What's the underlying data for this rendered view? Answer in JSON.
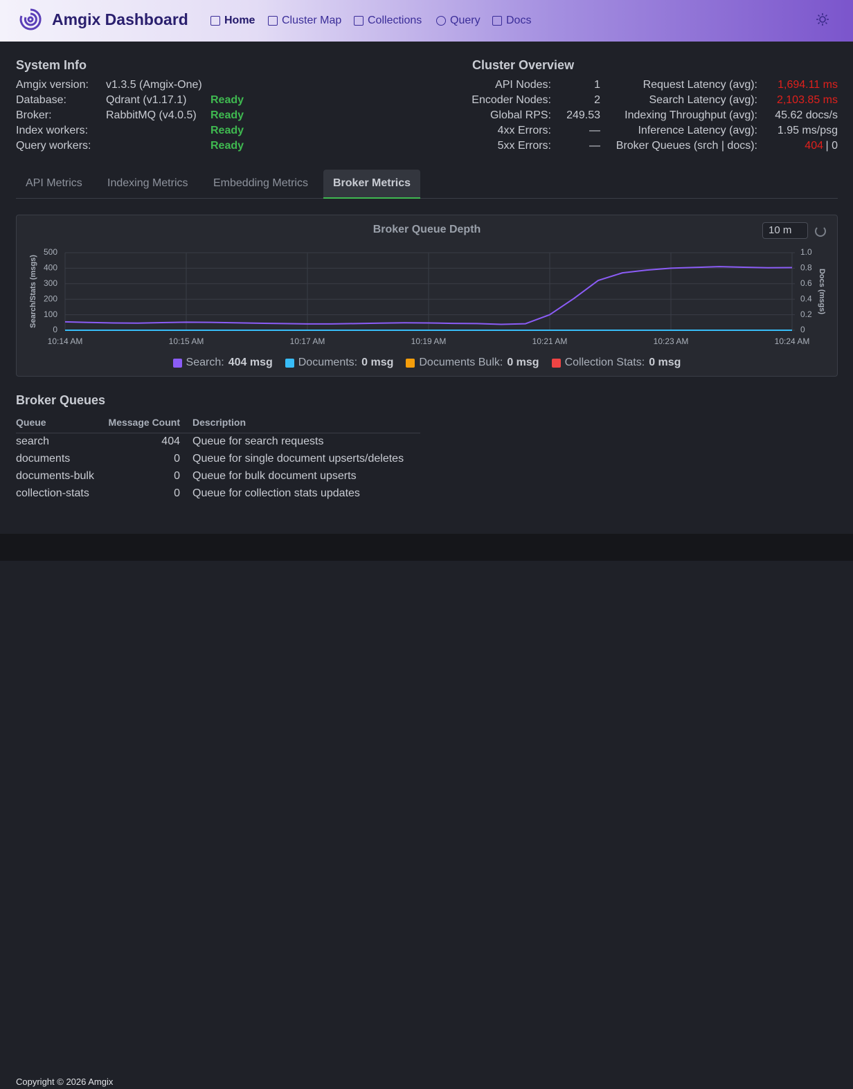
{
  "header": {
    "title": "Amgix Dashboard",
    "nav": [
      "Home",
      "Cluster Map",
      "Collections",
      "Query",
      "Docs"
    ],
    "active_nav": 0
  },
  "system_info": {
    "title": "System Info",
    "rows": [
      [
        "Amgix version:",
        "v1.3.5 (Amgix-One)",
        ""
      ],
      [
        "Database:",
        "Qdrant (v1.17.1)",
        "Ready"
      ],
      [
        "Broker:",
        "RabbitMQ (v4.0.5)",
        "Ready"
      ],
      [
        "Index workers:",
        "",
        "Ready"
      ],
      [
        "Query workers:",
        "",
        "Ready"
      ]
    ]
  },
  "cluster_overview": {
    "title": "Cluster Overview",
    "left": [
      [
        "API Nodes:",
        "1"
      ],
      [
        "Encoder Nodes:",
        "2"
      ],
      [
        "Global RPS:",
        "249.53"
      ],
      [
        "4xx Errors:",
        "—"
      ],
      [
        "5xx Errors:",
        "—"
      ]
    ],
    "right": [
      {
        "label": "Request Latency (avg):",
        "value": "1,694.11 ms",
        "alert": true
      },
      {
        "label": "Search Latency (avg):",
        "value": "2,103.85 ms",
        "alert": true
      },
      {
        "label": "Indexing Throughput (avg):",
        "value": "45.62 docs/s",
        "alert": false
      },
      {
        "label": "Inference Latency (avg):",
        "value": "1.95 ms/psg",
        "alert": false
      },
      {
        "label": "Broker Queues (srch | docs):",
        "value": "404",
        "alert": true,
        "rest": "| 0"
      }
    ]
  },
  "tabs": {
    "items": [
      "API Metrics",
      "Indexing Metrics",
      "Embedding Metrics",
      "Broker Metrics"
    ],
    "active": 3
  },
  "chart_data": {
    "type": "line",
    "title": "Broker Queue Depth",
    "range_select": "10 m",
    "ylabel": "Search/Stats (msgs)",
    "y2label": "Docs (msgs)",
    "categories": [
      "10:14 AM",
      null,
      null,
      null,
      null,
      "10:15 AM",
      null,
      null,
      null,
      null,
      "10:17 AM",
      null,
      null,
      null,
      null,
      "10:19 AM",
      null,
      null,
      null,
      null,
      "10:21 AM",
      null,
      null,
      null,
      null,
      "10:23 AM",
      null,
      null,
      null,
      null,
      "10:24 AM"
    ],
    "ylim": [
      0,
      500
    ],
    "yticks": [
      0,
      100,
      200,
      300,
      400,
      500
    ],
    "y2lim": [
      0,
      1
    ],
    "y2ticks": [
      0,
      0.2,
      0.4,
      0.6,
      0.8,
      {
        "value": 1,
        "label": "1.0"
      }
    ],
    "grid": true,
    "series": [
      {
        "name": "Search",
        "color": "#8b5cf6",
        "legend_value": "404 msg",
        "values": [
          54,
          50,
          47,
          46,
          49,
          52,
          51,
          48,
          45,
          43,
          41,
          41,
          43,
          46,
          48,
          47,
          44,
          43,
          38,
          42,
          100,
          205,
          321,
          370,
          388,
          400,
          405,
          410,
          406,
          403,
          404
        ]
      },
      {
        "name": "Documents",
        "color": "#38bdf8",
        "legend_value": "0 msg",
        "axis": "y2",
        "values": [
          0,
          0,
          0,
          0,
          0,
          0,
          0,
          0,
          0,
          0,
          0,
          0,
          0,
          0,
          0,
          0,
          0,
          0,
          0,
          0,
          0,
          0,
          0,
          0,
          0,
          0,
          0,
          0,
          0,
          0,
          0
        ]
      },
      {
        "name": "Documents Bulk",
        "color": "#f59e0b",
        "legend_value": "0 msg",
        "axis": "y2",
        "values": [
          0,
          0,
          0,
          0,
          0,
          0,
          0,
          0,
          0,
          0,
          0,
          0,
          0,
          0,
          0,
          0,
          0,
          0,
          0,
          0,
          0,
          0,
          0,
          0,
          0,
          0,
          0,
          0,
          0,
          0,
          0
        ]
      },
      {
        "name": "Collection Stats",
        "color": "#ef4444",
        "legend_value": "0 msg",
        "values": [
          0,
          0,
          0,
          0,
          0,
          0,
          0,
          0,
          0,
          0,
          0,
          0,
          0,
          0,
          0,
          0,
          0,
          0,
          0,
          0,
          0,
          0,
          0,
          0,
          0,
          0,
          0,
          0,
          0,
          0,
          0
        ]
      }
    ]
  },
  "queues": {
    "title": "Broker Queues",
    "columns": [
      "Queue",
      "Message Count",
      "Description"
    ],
    "rows": [
      [
        "search",
        404,
        "Queue for search requests"
      ],
      [
        "documents",
        0,
        "Queue for single document upserts/deletes"
      ],
      [
        "documents-bulk",
        0,
        "Queue for bulk document upserts"
      ],
      [
        "collection-stats",
        0,
        "Queue for collection stats updates"
      ]
    ]
  },
  "footer": {
    "text": "Copyright © 2026 Amgix"
  }
}
